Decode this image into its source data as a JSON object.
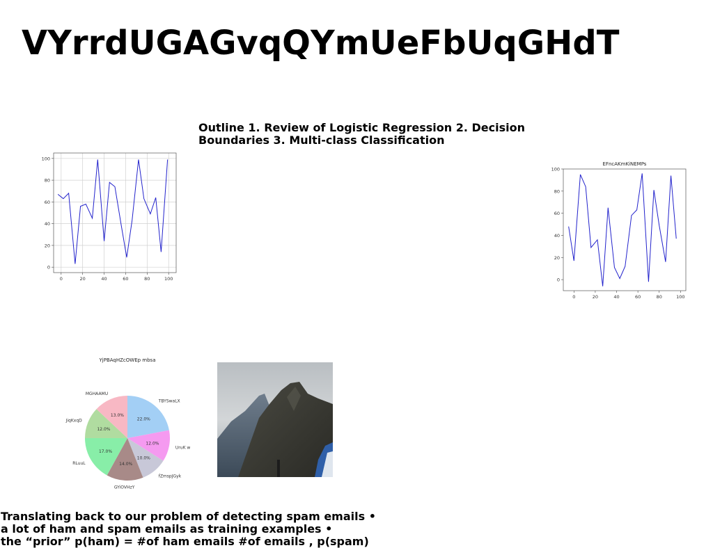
{
  "slide": {
    "title": "VYrrdUGAGvqQYmUeFbUqGHdT",
    "outline_text": "Outline 1. Review of Logistic Regression 2. Decision Boundaries 3. Multi-class Classification",
    "bottom_lines": [
      "Translating back to our problem of detecting spam emails •",
      "a lot of ham and spam emails as training examples •",
      "the “prior” p(ham) = #of ham emails #of emails , p(spam)"
    ]
  },
  "chart_data": [
    {
      "type": "line",
      "title": "",
      "xlabel": "",
      "ylabel": "",
      "xlim": [
        -7,
        107
      ],
      "ylim": [
        -5,
        105
      ],
      "xticks": [
        0,
        20,
        40,
        60,
        80,
        100
      ],
      "yticks": [
        0,
        20,
        40,
        60,
        80,
        100
      ],
      "grid": true,
      "color": "#2222cc",
      "series": [
        {
          "x": [
            -3,
            2,
            7,
            13,
            18,
            23,
            29,
            34,
            40,
            45,
            50,
            56,
            61,
            66,
            72,
            77,
            83,
            88,
            93,
            99
          ],
          "y": [
            67,
            63,
            68,
            3,
            56,
            58,
            45,
            99,
            24,
            78,
            74,
            38,
            9,
            43,
            99,
            63,
            49,
            64,
            14,
            99
          ]
        }
      ]
    },
    {
      "type": "line",
      "title": "EFncAKmKiNEMPs",
      "xlabel": "",
      "ylabel": "",
      "xlim": [
        -10,
        105
      ],
      "ylim": [
        -10,
        100
      ],
      "xticks": [
        0,
        20,
        40,
        60,
        80,
        100
      ],
      "yticks": [
        0,
        20,
        40,
        60,
        80,
        100
      ],
      "grid": false,
      "color": "#2222cc",
      "series": [
        {
          "x": [
            -5,
            0,
            6,
            11,
            16,
            22,
            27,
            32,
            38,
            43,
            48,
            54,
            59,
            64,
            70,
            75,
            80,
            86,
            91,
            96
          ],
          "y": [
            48,
            17,
            95,
            84,
            29,
            36,
            -6,
            65,
            11,
            1,
            12,
            58,
            63,
            96,
            -2,
            81,
            49,
            16,
            94,
            37
          ]
        }
      ]
    },
    {
      "type": "pie",
      "title": "YjPBAqHZcOWEp mbsa",
      "slices": [
        {
          "label": "TBYSwaLX",
          "value": 22.0,
          "pct": "22.0%",
          "color": "#a3cff5"
        },
        {
          "label": "UruK w",
          "value": 12.0,
          "pct": "12.0%",
          "color": "#f59af0"
        },
        {
          "label": "fZmspJGyk",
          "value": 10.0,
          "pct": "10.0%",
          "color": "#c8c8d8"
        },
        {
          "label": "GYiOVHzY",
          "value": 14.0,
          "pct": "14.0%",
          "color": "#a88a88"
        },
        {
          "label": "RLuuL",
          "value": 17.0,
          "pct": "17.0%",
          "color": "#88eea8"
        },
        {
          "label": "JiqKxqD",
          "value": 12.0,
          "pct": "12.0%",
          "color": "#b0dca0"
        },
        {
          "label": "MGHAAMU",
          "value": 13.0,
          "pct": "13.0%",
          "color": "#f8b8c4"
        }
      ]
    }
  ]
}
